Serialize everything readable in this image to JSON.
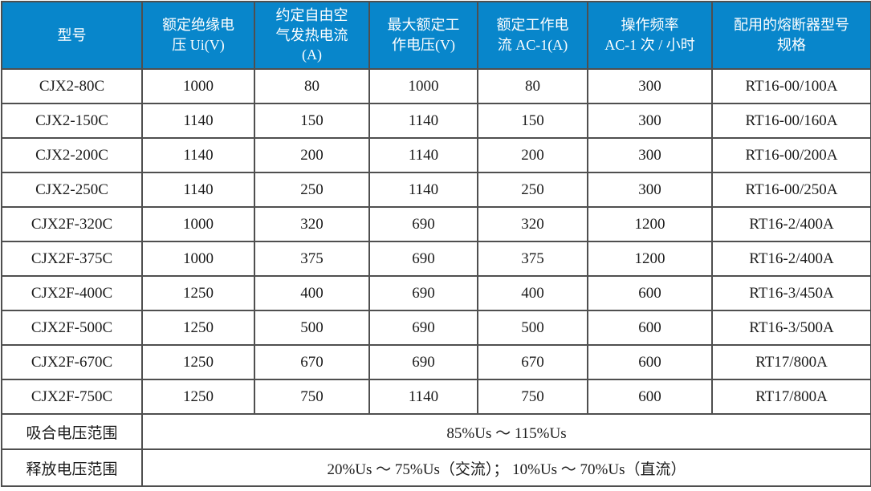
{
  "colors": {
    "header_bg": "#0886CB",
    "header_text": "#FFFFFF",
    "border": "#4F4F4F",
    "body_text": "#1C1C1C",
    "background": "#FFFFFF"
  },
  "table": {
    "headers": [
      "型号",
      "额定绝缘电\n压 Ui(V)",
      "约定自由空\n气发热电流\n(A)",
      "最大额定工\n作电压(V)",
      "额定工作电\n流 AC-1(A)",
      "操作频率\nAC-1 次 / 小时",
      "配用的熔断器型号\n规格"
    ],
    "rows": [
      [
        "CJX2-80C",
        "1000",
        "80",
        "1000",
        "80",
        "300",
        "RT16-00/100A"
      ],
      [
        "CJX2-150C",
        "1140",
        "150",
        "1140",
        "150",
        "300",
        "RT16-00/160A"
      ],
      [
        "CJX2-200C",
        "1140",
        "200",
        "1140",
        "200",
        "300",
        "RT16-00/200A"
      ],
      [
        "CJX2-250C",
        "1140",
        "250",
        "1140",
        "250",
        "300",
        "RT16-00/250A"
      ],
      [
        "CJX2F-320C",
        "1000",
        "320",
        "690",
        "320",
        "1200",
        "RT16-2/400A"
      ],
      [
        "CJX2F-375C",
        "1000",
        "375",
        "690",
        "375",
        "1200",
        "RT16-2/400A"
      ],
      [
        "CJX2F-400C",
        "1250",
        "400",
        "690",
        "400",
        "600",
        "RT16-3/450A"
      ],
      [
        "CJX2F-500C",
        "1250",
        "500",
        "690",
        "500",
        "600",
        "RT16-3/500A"
      ],
      [
        "CJX2F-670C",
        "1250",
        "670",
        "690",
        "670",
        "600",
        "RT17/800A"
      ],
      [
        "CJX2F-750C",
        "1250",
        "750",
        "1140",
        "750",
        "600",
        "RT17/800A"
      ]
    ],
    "footer": [
      {
        "label": "吸合电压范围",
        "value": "85%Us ～ 115%Us"
      },
      {
        "label": "释放电压范围",
        "value": "20%Us ～ 75%Us（交流）； 10%Us ～ 70%Us（直流）"
      }
    ]
  }
}
